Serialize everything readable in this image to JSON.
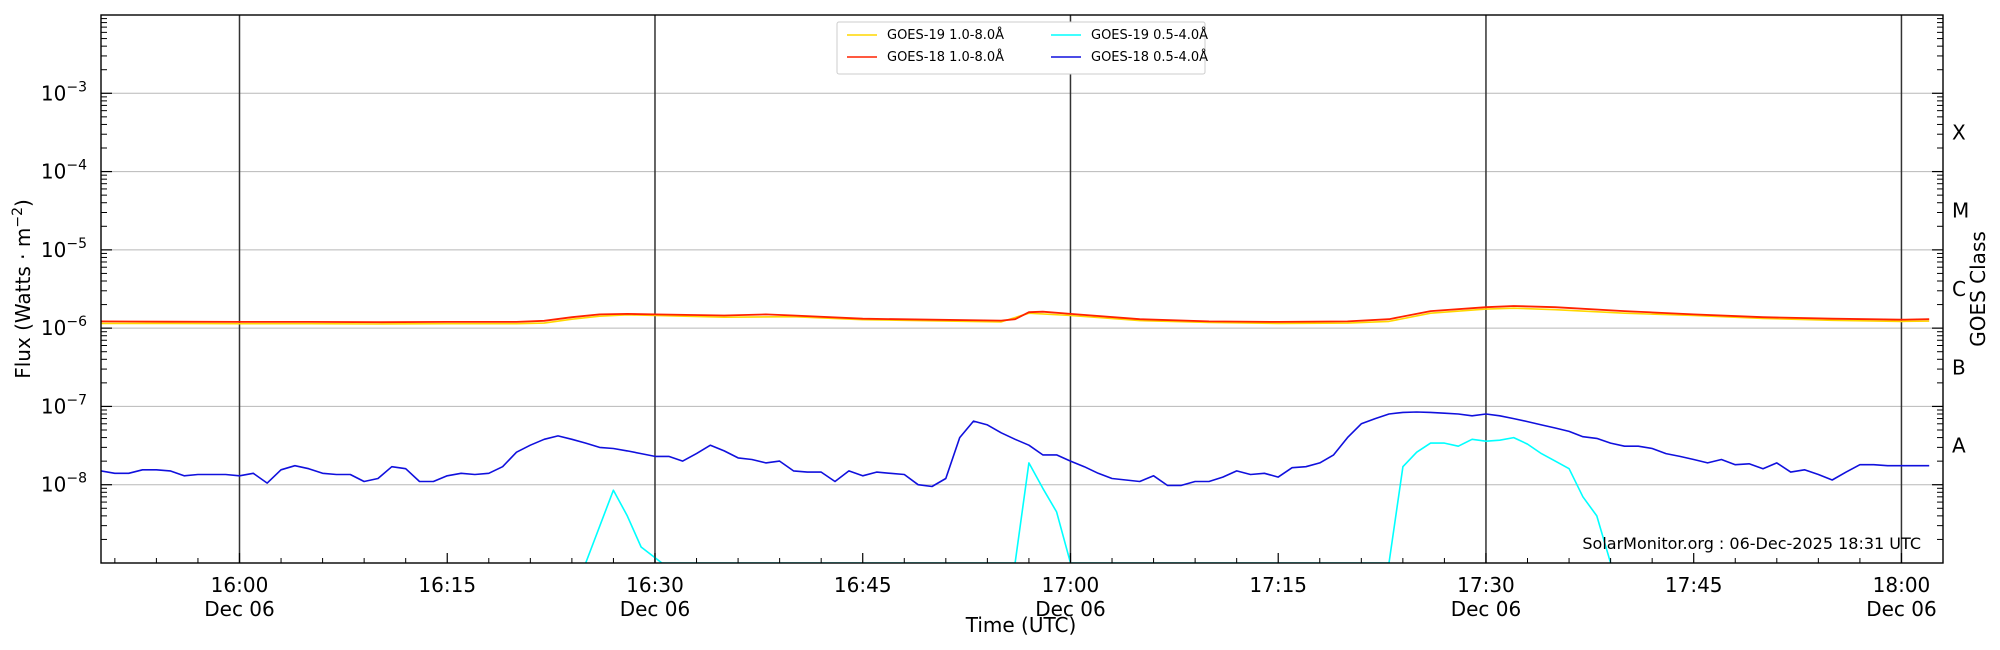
{
  "chart_data": {
    "type": "line",
    "title": "",
    "xlabel": "Time (UTC)",
    "ylabel": "Flux (Watts · m⁻²)",
    "ylabel_parts": {
      "main": "Flux (Watts · m",
      "sup": "−2",
      "close": ")"
    },
    "right_label": "GOES Class",
    "yscale": "log",
    "ylim": [
      1e-09,
      0.01
    ],
    "xlim": [
      "15:50",
      "18:03"
    ],
    "grid": "horizontal",
    "legend_position": "top-center",
    "credit": "SolarMonitor.org : 06-Dec-2025 18:31 UTC",
    "y_ticks": [
      {
        "value": 1e-08,
        "base": "10",
        "exp": "−8"
      },
      {
        "value": 1e-07,
        "base": "10",
        "exp": "−7"
      },
      {
        "value": 1e-06,
        "base": "10",
        "exp": "−6"
      },
      {
        "value": 1e-05,
        "base": "10",
        "exp": "−5"
      },
      {
        "value": 0.0001,
        "base": "10",
        "exp": "−4"
      },
      {
        "value": 0.001,
        "base": "10",
        "exp": "−3"
      }
    ],
    "goes_classes": [
      {
        "label": "A",
        "value": 3.16e-08
      },
      {
        "label": "B",
        "value": 3.16e-07
      },
      {
        "label": "C",
        "value": 3.16e-06
      },
      {
        "label": "M",
        "value": 3.16e-05
      },
      {
        "label": "X",
        "value": 0.000316
      }
    ],
    "x_ticks": [
      {
        "time": "16:00",
        "date": "Dec 06",
        "major": true
      },
      {
        "time": "16:15",
        "date": "",
        "major": false
      },
      {
        "time": "16:30",
        "date": "Dec 06",
        "major": true
      },
      {
        "time": "16:45",
        "date": "",
        "major": false
      },
      {
        "time": "17:00",
        "date": "Dec 06",
        "major": true
      },
      {
        "time": "17:15",
        "date": "",
        "major": false
      },
      {
        "time": "17:30",
        "date": "Dec 06",
        "major": true
      },
      {
        "time": "17:45",
        "date": "",
        "major": false
      },
      {
        "time": "18:00",
        "date": "Dec 06",
        "major": true
      }
    ],
    "series": [
      {
        "name": "GOES-19 1.0-8.0Å",
        "color": "#FFD700",
        "x": [
          "15:50",
          "15:55",
          "16:00",
          "16:05",
          "16:10",
          "16:15",
          "16:20",
          "16:22",
          "16:24",
          "16:26",
          "16:28",
          "16:30",
          "16:35",
          "16:40",
          "16:45",
          "16:50",
          "16:55",
          "16:57",
          "17:00",
          "17:05",
          "17:10",
          "17:15",
          "17:20",
          "17:23",
          "17:26",
          "17:30",
          "17:32",
          "17:35",
          "17:40",
          "17:45",
          "17:50",
          "17:55",
          "18:00",
          "18:02"
        ],
        "values": [
          1.15e-06,
          1.15e-06,
          1.14e-06,
          1.14e-06,
          1.13e-06,
          1.14e-06,
          1.14e-06,
          1.16e-06,
          1.3e-06,
          1.42e-06,
          1.48e-06,
          1.45e-06,
          1.38e-06,
          1.4e-06,
          1.28e-06,
          1.24e-06,
          1.2e-06,
          1.55e-06,
          1.45e-06,
          1.25e-06,
          1.18e-06,
          1.15e-06,
          1.16e-06,
          1.22e-06,
          1.55e-06,
          1.75e-06,
          1.8e-06,
          1.72e-06,
          1.55e-06,
          1.45e-06,
          1.33e-06,
          1.26e-06,
          1.22e-06,
          1.23e-06
        ]
      },
      {
        "name": "GOES-18 1.0-8.0Å",
        "color": "#FF2200",
        "x": [
          "15:50",
          "15:55",
          "16:00",
          "16:05",
          "16:10",
          "16:15",
          "16:20",
          "16:22",
          "16:24",
          "16:26",
          "16:28",
          "16:30",
          "16:35",
          "16:38",
          "16:40",
          "16:45",
          "16:50",
          "16:55",
          "16:56",
          "16:57",
          "16:58",
          "17:00",
          "17:05",
          "17:10",
          "17:15",
          "17:20",
          "17:23",
          "17:26",
          "17:30",
          "17:32",
          "17:35",
          "17:40",
          "17:45",
          "17:50",
          "17:55",
          "18:00",
          "18:02"
        ],
        "values": [
          1.22e-06,
          1.21e-06,
          1.2e-06,
          1.2e-06,
          1.19e-06,
          1.2e-06,
          1.2e-06,
          1.24e-06,
          1.38e-06,
          1.5e-06,
          1.52e-06,
          1.5e-06,
          1.45e-06,
          1.5e-06,
          1.45e-06,
          1.32e-06,
          1.28e-06,
          1.25e-06,
          1.3e-06,
          1.6e-06,
          1.62e-06,
          1.52e-06,
          1.3e-06,
          1.22e-06,
          1.2e-06,
          1.22e-06,
          1.3e-06,
          1.65e-06,
          1.85e-06,
          1.92e-06,
          1.85e-06,
          1.65e-06,
          1.5e-06,
          1.38e-06,
          1.32e-06,
          1.28e-06,
          1.3e-06
        ]
      },
      {
        "name": "GOES-19 0.5-4.0Å",
        "color": "#00FFFF",
        "x": [
          "16:25",
          "16:27",
          "16:28",
          "16:29",
          "16:30.5",
          "16:56",
          "16:57",
          "16:58",
          "16:59",
          "17:00",
          "17:23",
          "17:24",
          "17:25",
          "17:26",
          "17:27",
          "17:28",
          "17:29",
          "17:30",
          "17:31",
          "17:32",
          "17:33",
          "17:34",
          "17:35",
          "17:36",
          "17:37",
          "17:38",
          "17:39"
        ],
        "values": [
          1e-09,
          8.5e-09,
          4e-09,
          1.6e-09,
          1e-09,
          1e-09,
          1.9e-08,
          9e-09,
          4.5e-09,
          1e-09,
          1e-09,
          1.7e-08,
          2.6e-08,
          3.4e-08,
          3.4e-08,
          3.1e-08,
          3.8e-08,
          3.6e-08,
          3.7e-08,
          4e-08,
          3.3e-08,
          2.5e-08,
          2e-08,
          1.6e-08,
          7e-09,
          4e-09,
          1e-09
        ]
      },
      {
        "name": "GOES-18 0.5-4.0Å",
        "color": "#1010DD",
        "x": [
          "15:50",
          "15:51",
          "15:52",
          "15:53",
          "15:54",
          "15:55",
          "15:56",
          "15:57",
          "15:58",
          "15:59",
          "16:00",
          "16:01",
          "16:02",
          "16:03",
          "16:04",
          "16:05",
          "16:06",
          "16:07",
          "16:08",
          "16:09",
          "16:10",
          "16:11",
          "16:12",
          "16:13",
          "16:14",
          "16:15",
          "16:16",
          "16:17",
          "16:18",
          "16:19",
          "16:20",
          "16:21",
          "16:22",
          "16:23",
          "16:24",
          "16:25",
          "16:26",
          "16:27",
          "16:28",
          "16:29",
          "16:30",
          "16:31",
          "16:32",
          "16:33",
          "16:34",
          "16:35",
          "16:36",
          "16:37",
          "16:38",
          "16:39",
          "16:40",
          "16:41",
          "16:42",
          "16:43",
          "16:44",
          "16:45",
          "16:46",
          "16:47",
          "16:48",
          "16:49",
          "16:50",
          "16:51",
          "16:52",
          "16:53",
          "16:54",
          "16:55",
          "16:56",
          "16:57",
          "16:58",
          "16:59",
          "17:00",
          "17:01",
          "17:02",
          "17:03",
          "17:04",
          "17:05",
          "17:06",
          "17:07",
          "17:08",
          "17:09",
          "17:10",
          "17:11",
          "17:12",
          "17:13",
          "17:14",
          "17:15",
          "17:16",
          "17:17",
          "17:18",
          "17:19",
          "17:20",
          "17:21",
          "17:22",
          "17:23",
          "17:24",
          "17:25",
          "17:26",
          "17:27",
          "17:28",
          "17:29",
          "17:30",
          "17:31",
          "17:32",
          "17:33",
          "17:34",
          "17:35",
          "17:36",
          "17:37",
          "17:38",
          "17:39",
          "17:40",
          "17:41",
          "17:42",
          "17:43",
          "17:44",
          "17:45",
          "17:46",
          "17:47",
          "17:48",
          "17:49",
          "17:50",
          "17:51",
          "17:52",
          "17:53",
          "17:54",
          "17:55",
          "17:56",
          "17:57",
          "17:58",
          "17:59",
          "18:00",
          "18:01",
          "18:02"
        ],
        "values": [
          1.5e-08,
          1.4e-08,
          1.4e-08,
          1.55e-08,
          1.55e-08,
          1.5e-08,
          1.3e-08,
          1.35e-08,
          1.35e-08,
          1.35e-08,
          1.3e-08,
          1.4e-08,
          1.05e-08,
          1.55e-08,
          1.75e-08,
          1.6e-08,
          1.4e-08,
          1.35e-08,
          1.35e-08,
          1.1e-08,
          1.2e-08,
          1.7e-08,
          1.6e-08,
          1.1e-08,
          1.1e-08,
          1.3e-08,
          1.4e-08,
          1.35e-08,
          1.4e-08,
          1.7e-08,
          2.6e-08,
          3.2e-08,
          3.8e-08,
          4.2e-08,
          3.8e-08,
          3.4e-08,
          3e-08,
          2.9e-08,
          2.7e-08,
          2.5e-08,
          2.3e-08,
          2.3e-08,
          2e-08,
          2.5e-08,
          3.2e-08,
          2.7e-08,
          2.2e-08,
          2.1e-08,
          1.9e-08,
          2e-08,
          1.5e-08,
          1.45e-08,
          1.45e-08,
          1.1e-08,
          1.5e-08,
          1.3e-08,
          1.45e-08,
          1.4e-08,
          1.35e-08,
          1e-08,
          9.5e-09,
          1.2e-08,
          4e-08,
          6.5e-08,
          5.8e-08,
          4.6e-08,
          3.8e-08,
          3.2e-08,
          2.4e-08,
          2.4e-08,
          2e-08,
          1.7e-08,
          1.4e-08,
          1.2e-08,
          1.15e-08,
          1.1e-08,
          1.3e-08,
          9.8e-09,
          9.8e-09,
          1.1e-08,
          1.1e-08,
          1.25e-08,
          1.5e-08,
          1.35e-08,
          1.4e-08,
          1.25e-08,
          1.65e-08,
          1.7e-08,
          1.9e-08,
          2.4e-08,
          4e-08,
          6e-08,
          7e-08,
          8e-08,
          8.4e-08,
          8.5e-08,
          8.4e-08,
          8.2e-08,
          8e-08,
          7.6e-08,
          8e-08,
          7.6e-08,
          7e-08,
          6.4e-08,
          5.8e-08,
          5.3e-08,
          4.8e-08,
          4.1e-08,
          3.9e-08,
          3.4e-08,
          3.1e-08,
          3.1e-08,
          2.9e-08,
          2.5e-08,
          2.3e-08,
          2.1e-08,
          1.9e-08,
          2.1e-08,
          1.8e-08,
          1.85e-08,
          1.6e-08,
          1.9e-08,
          1.45e-08,
          1.55e-08,
          1.35e-08,
          1.15e-08,
          1.45e-08,
          1.8e-08,
          1.8e-08,
          1.75e-08,
          1.75e-08,
          1.75e-08,
          1.75e-08
        ]
      }
    ]
  }
}
